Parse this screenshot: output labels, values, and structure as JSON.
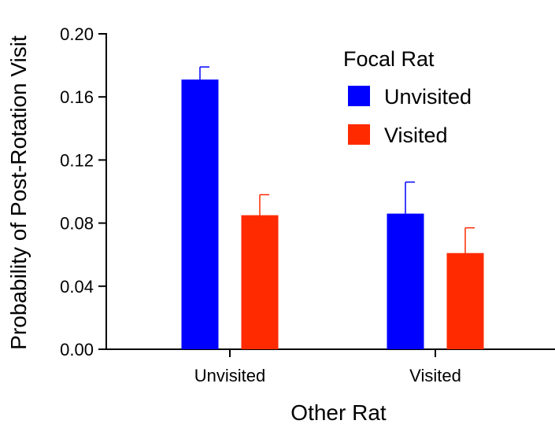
{
  "chart_data": {
    "type": "bar",
    "title": "",
    "xlabel": "Other Rat",
    "ylabel": "Probability of Post-Rotation Visit",
    "categories": [
      "Unvisited",
      "Visited"
    ],
    "ylim": [
      0,
      0.2
    ],
    "yticks": [
      "0.00",
      "0.04",
      "0.08",
      "0.12",
      "0.16",
      "0.20"
    ],
    "grid": false,
    "legend": {
      "title": "Focal Rat",
      "placement": "top-right"
    },
    "series": [
      {
        "name": "Unvisited",
        "color": "#0000ff",
        "values": [
          0.171,
          0.086
        ],
        "errors": [
          0.008,
          0.02
        ]
      },
      {
        "name": "Visited",
        "color": "#ff2a00",
        "values": [
          0.085,
          0.061
        ],
        "errors": [
          0.013,
          0.016
        ]
      }
    ]
  }
}
